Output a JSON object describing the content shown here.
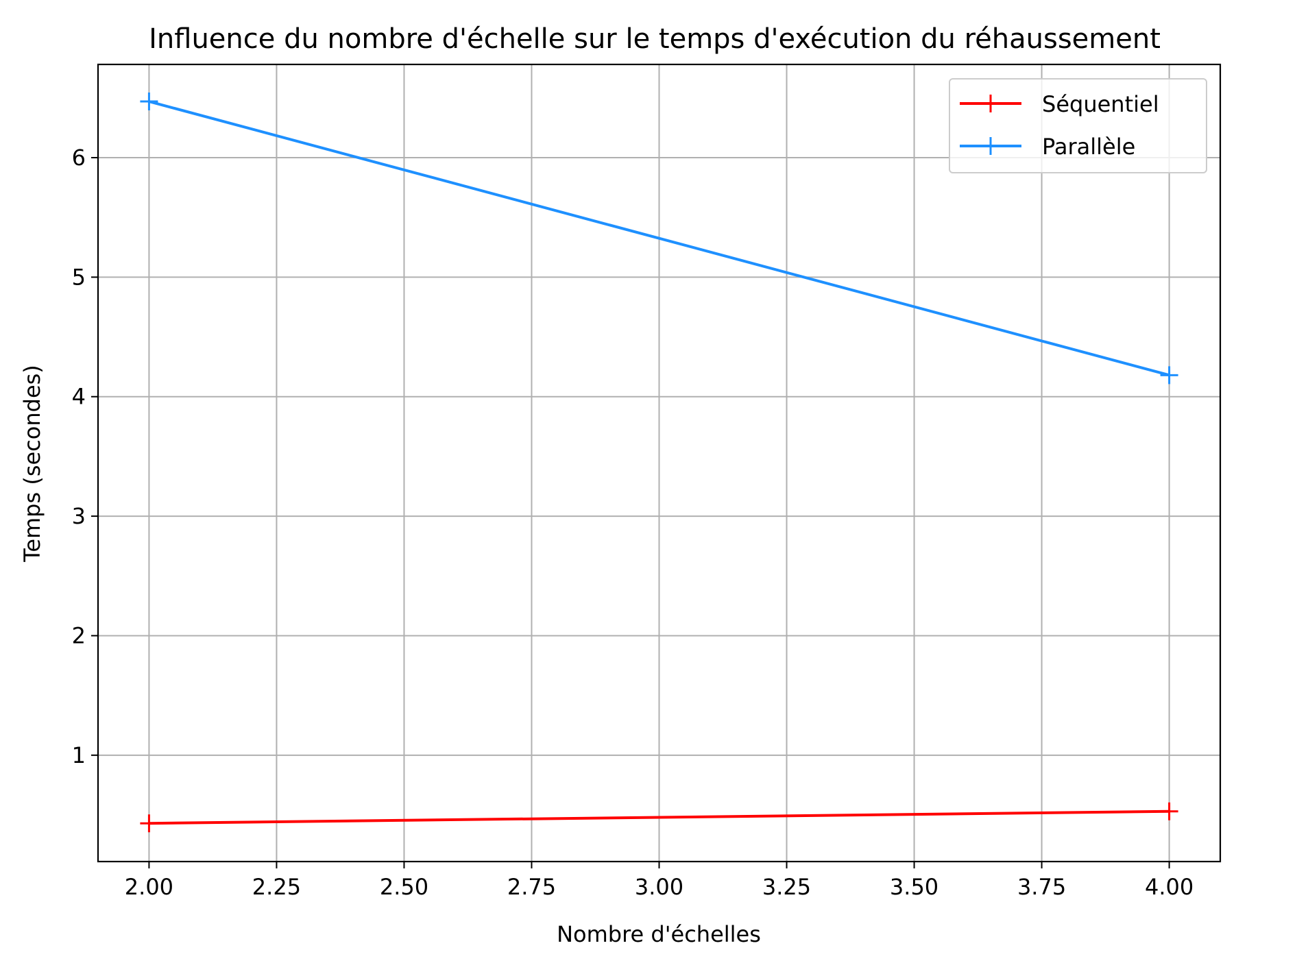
{
  "chart_data": {
    "type": "line",
    "title": "Influence du nombre d'échelle sur le temps d'exécution du réhaussement",
    "xlabel": "Nombre d'échelles",
    "ylabel": "Temps (secondes)",
    "xlim": [
      1.9,
      4.1
    ],
    "ylim": [
      0.11,
      6.78
    ],
    "xticks": [
      2.0,
      2.25,
      2.5,
      2.75,
      3.0,
      3.25,
      3.5,
      3.75,
      4.0
    ],
    "xtick_labels": [
      "2.00",
      "2.25",
      "2.50",
      "2.75",
      "3.00",
      "3.25",
      "3.50",
      "3.75",
      "4.00"
    ],
    "yticks": [
      1,
      2,
      3,
      4,
      5,
      6
    ],
    "ytick_labels": [
      "1",
      "2",
      "3",
      "4",
      "5",
      "6"
    ],
    "grid": true,
    "legend_position": "top-right",
    "series": [
      {
        "name": "Séquentiel",
        "color": "#ff0000",
        "marker": "plus",
        "x": [
          2,
          4
        ],
        "y": [
          0.43,
          0.53
        ]
      },
      {
        "name": "Parallèle",
        "color": "#1e90ff",
        "marker": "plus",
        "x": [
          2,
          4
        ],
        "y": [
          6.47,
          4.18
        ]
      }
    ]
  }
}
